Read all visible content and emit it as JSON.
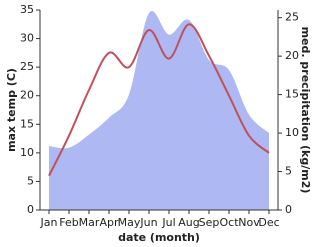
{
  "chart_data": {
    "type": "line-area",
    "xlabel": "date (month)",
    "ylabel": "max temp (C)",
    "y2label": "med. precipitation (kg/m2)",
    "categories": [
      "Jan",
      "Feb",
      "Mar",
      "Apr",
      "May",
      "Jun",
      "Jul",
      "Aug",
      "Sep",
      "Oct",
      "Nov",
      "Dec"
    ],
    "series": [
      {
        "name": "med. precipitation",
        "color": "#aeb8f2",
        "axis": "y2",
        "style": "area",
        "values": [
          8.3,
          8.1,
          9.8,
          12,
          15,
          25.6,
          22.8,
          24.7,
          19.5,
          18.2,
          12.4,
          10
        ]
      },
      {
        "name": "max temp",
        "color": "#c0505a",
        "style": "line",
        "values": [
          6,
          13,
          21,
          27.5,
          25,
          31.5,
          26.5,
          32.5,
          27,
          20,
          13,
          10
        ]
      }
    ],
    "ylim": [
      0,
      35
    ],
    "yticks": [
      0,
      5,
      10,
      15,
      20,
      25,
      30,
      35
    ],
    "y2lim": [
      0,
      26
    ],
    "y2ticks": [
      0,
      5,
      10,
      15,
      20,
      25
    ]
  }
}
